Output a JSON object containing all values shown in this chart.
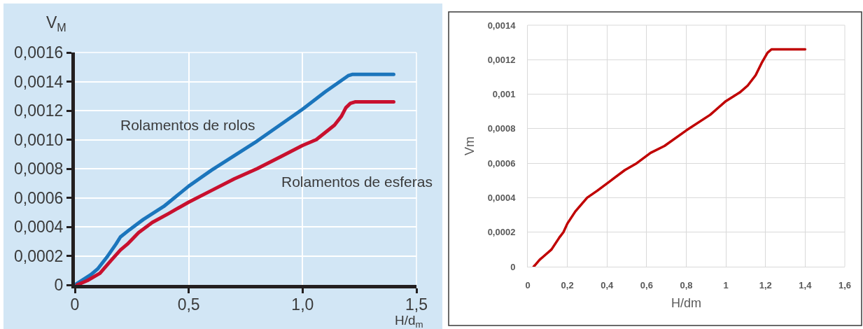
{
  "chart_data": [
    {
      "type": "line",
      "xlabel": "H/d$_{m}$",
      "ylabel": "V$_{M}$",
      "xlim": [
        0,
        1.5
      ],
      "ylim": [
        0,
        0.0016
      ],
      "xticks": [
        0,
        {
          "value": 0.5,
          "label": "0,5"
        },
        {
          "value": 1.0,
          "label": "1,0"
        },
        {
          "value": 1.5,
          "label": "1,5"
        }
      ],
      "yticks": [
        0,
        {
          "value": 0.0002,
          "label": "0,0002"
        },
        {
          "value": 0.0004,
          "label": "0,0004"
        },
        {
          "value": 0.0006,
          "label": "0,0006"
        },
        {
          "value": 0.0008,
          "label": "0,0008"
        },
        {
          "value": 0.001,
          "label": "0,0010"
        },
        {
          "value": 0.0012,
          "label": "0,0012"
        },
        {
          "value": 0.0014,
          "label": "0,0014"
        },
        {
          "value": 0.0016,
          "label": "0,0016"
        }
      ],
      "grid": true,
      "series": [
        {
          "name": "Rolamentos de rolos",
          "color": "#1b75bc",
          "x": [
            0,
            0.07,
            0.1,
            0.14,
            0.18,
            0.2,
            0.24,
            0.3,
            0.39,
            0.5,
            0.6,
            0.7,
            0.8,
            0.9,
            1.0,
            1.1,
            1.2,
            1.22,
            1.4
          ],
          "values": [
            0,
            7e-05,
            0.00011,
            0.00019,
            0.00028,
            0.00033,
            0.00038,
            0.00045,
            0.00054,
            0.00068,
            0.00079,
            0.00089,
            0.00099,
            0.0011,
            0.00121,
            0.00133,
            0.00144,
            0.00145,
            0.00145
          ]
        },
        {
          "name": "Rolamentos de esferas",
          "color": "#c8102e",
          "x": [
            0.01,
            0.055,
            0.11,
            0.16,
            0.2,
            0.23,
            0.28,
            0.34,
            0.41,
            0.5,
            0.6,
            0.7,
            0.8,
            0.9,
            1.0,
            1.06,
            1.14,
            1.17,
            1.19,
            1.21,
            1.23,
            1.4
          ],
          "values": [
            0,
            3e-05,
            8e-05,
            0.00017,
            0.00024,
            0.00028,
            0.00036,
            0.00043,
            0.00049,
            0.00057,
            0.00065,
            0.00073,
            0.0008,
            0.00088,
            0.00096,
            0.001,
            0.0011,
            0.00116,
            0.00122,
            0.00125,
            0.00126,
            0.00126
          ]
        }
      ]
    },
    {
      "type": "line",
      "xlabel": "H/dm",
      "ylabel": "Vm",
      "xlim": [
        0,
        1.6
      ],
      "ylim": [
        0,
        0.0014
      ],
      "xticks": [
        0,
        {
          "value": 0.2,
          "label": "0,2"
        },
        {
          "value": 0.4,
          "label": "0,4"
        },
        {
          "value": 0.6,
          "label": "0,6"
        },
        {
          "value": 0.8,
          "label": "0,8"
        },
        1,
        {
          "value": 1.2,
          "label": "1,2"
        },
        {
          "value": 1.4,
          "label": "1,4"
        },
        {
          "value": 1.6,
          "label": "1,6"
        }
      ],
      "yticks": [
        0,
        {
          "value": 0.0002,
          "label": "0,0002"
        },
        {
          "value": 0.0004,
          "label": "0,0004"
        },
        {
          "value": 0.0006,
          "label": "0,0006"
        },
        {
          "value": 0.0008,
          "label": "0,0008"
        },
        {
          "value": 0.001,
          "label": "0,001"
        },
        {
          "value": 0.0012,
          "label": "0,0012"
        },
        {
          "value": 0.0014,
          "label": "0,0014"
        }
      ],
      "grid": true,
      "series": [
        {
          "color": "#c00000",
          "x": [
            0.03,
            0.06,
            0.08,
            0.12,
            0.16,
            0.18,
            0.2,
            0.24,
            0.3,
            0.35,
            0.42,
            0.49,
            0.55,
            0.62,
            0.69,
            0.8,
            0.92,
            0.96,
            1.0,
            1.07,
            1.11,
            1.15,
            1.18,
            1.21,
            1.23,
            1.4
          ],
          "values": [
            0,
            4e-05,
            6e-05,
            0.0001,
            0.00017,
            0.0002,
            0.00025,
            0.00032,
            0.0004,
            0.00044,
            0.0005,
            0.00056,
            0.0006,
            0.00066,
            0.0007,
            0.00079,
            0.00088,
            0.00092,
            0.00096,
            0.00101,
            0.00105,
            0.00111,
            0.00118,
            0.00124,
            0.00126,
            0.00126
          ]
        }
      ]
    }
  ]
}
